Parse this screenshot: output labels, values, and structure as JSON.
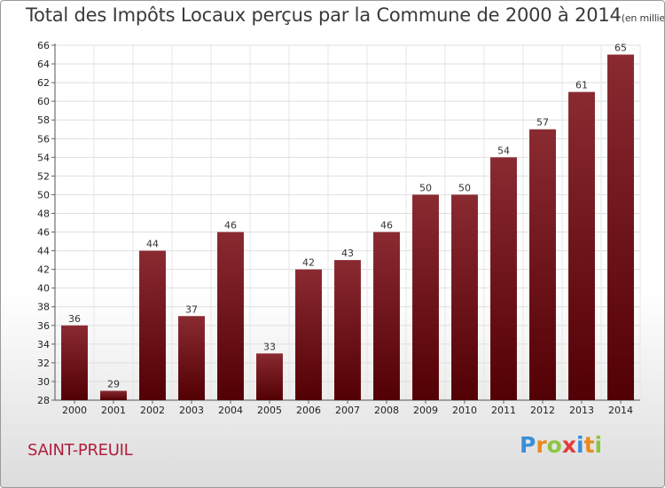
{
  "header": {
    "title": "Total des Impôts Locaux perçus par la Commune de 2000 à 2014",
    "unit": "(en milliers d'€)"
  },
  "footer": {
    "commune": "SAINT-PREUIL",
    "brand_letters": [
      "P",
      "r",
      "o",
      "x",
      "i",
      "t",
      "i"
    ],
    "brand_colors": [
      "#3a8fd8",
      "#e98a1f",
      "#8cc63f",
      "#e23b3b",
      "#3a8fd8",
      "#e98a1f",
      "#8cc63f"
    ]
  },
  "chart_data": {
    "type": "bar",
    "title": "Total des Impôts Locaux perçus par la Commune de 2000 à 2014",
    "xlabel": "",
    "ylabel": "",
    "categories": [
      "2000",
      "2001",
      "2002",
      "2003",
      "2004",
      "2005",
      "2006",
      "2007",
      "2008",
      "2009",
      "2010",
      "2011",
      "2012",
      "2013",
      "2014"
    ],
    "values": [
      36,
      29,
      44,
      37,
      46,
      33,
      42,
      43,
      46,
      50,
      50,
      54,
      57,
      61,
      65
    ],
    "ylim": [
      28,
      66
    ],
    "yticks": [
      28,
      30,
      32,
      34,
      36,
      38,
      40,
      42,
      44,
      46,
      48,
      50,
      52,
      54,
      56,
      58,
      60,
      62,
      64,
      66
    ],
    "grid": true,
    "bar_color": "#7a1a22"
  }
}
